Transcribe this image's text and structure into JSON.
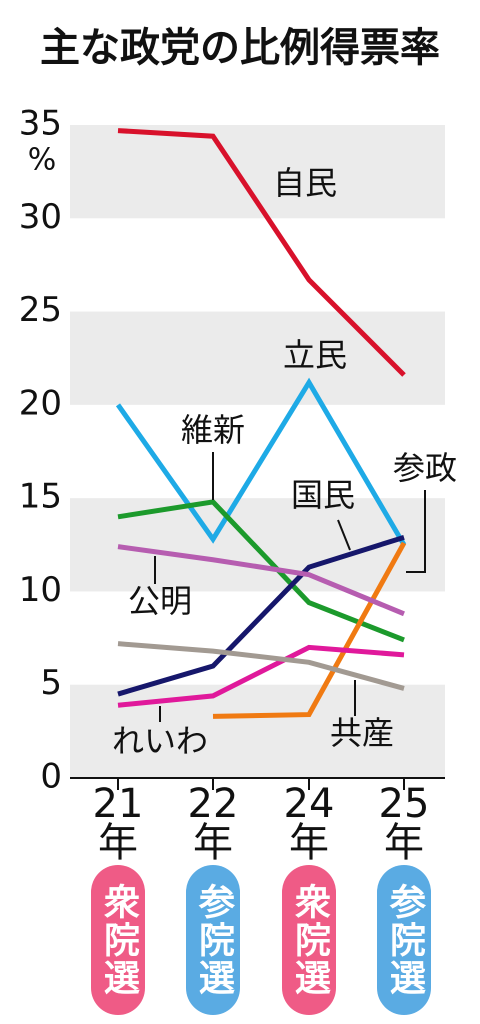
{
  "chart_data": {
    "type": "line",
    "title": "主な政党の比例得票率",
    "y_unit": "%",
    "x_unit": "年",
    "categories": [
      "21",
      "22",
      "24",
      "25"
    ],
    "elections": [
      "衆院選",
      "参院選",
      "衆院選",
      "参院選"
    ],
    "election_colors": [
      "#ef5b86",
      "#5aabe3",
      "#ef5b86",
      "#5aabe3"
    ],
    "ylim": [
      0,
      35
    ],
    "yticks": [
      0,
      5,
      10,
      15,
      20,
      25,
      30,
      35
    ],
    "grid": "bands",
    "series": [
      {
        "name": "自民",
        "color": "#d8112b",
        "values": [
          34.7,
          34.4,
          26.7,
          21.6
        ]
      },
      {
        "name": "立民",
        "color": "#1eaae6",
        "values": [
          20.0,
          12.8,
          21.2,
          12.5
        ]
      },
      {
        "name": "維新",
        "color": "#1c9a2c",
        "values": [
          14.0,
          14.8,
          9.4,
          7.4
        ]
      },
      {
        "name": "国民",
        "color": "#16176b",
        "values": [
          4.5,
          6.0,
          11.3,
          12.9
        ]
      },
      {
        "name": "参政",
        "color": "#f07a12",
        "values": [
          null,
          3.3,
          3.4,
          12.6
        ]
      },
      {
        "name": "公明",
        "color": "#b65db0",
        "values": [
          12.4,
          11.7,
          10.9,
          8.8
        ]
      },
      {
        "name": "れいわ",
        "color": "#e0199b",
        "values": [
          3.9,
          4.4,
          7.0,
          6.6
        ]
      },
      {
        "name": "共産",
        "color": "#a29a92",
        "values": [
          7.2,
          6.8,
          6.2,
          4.8
        ]
      }
    ]
  }
}
